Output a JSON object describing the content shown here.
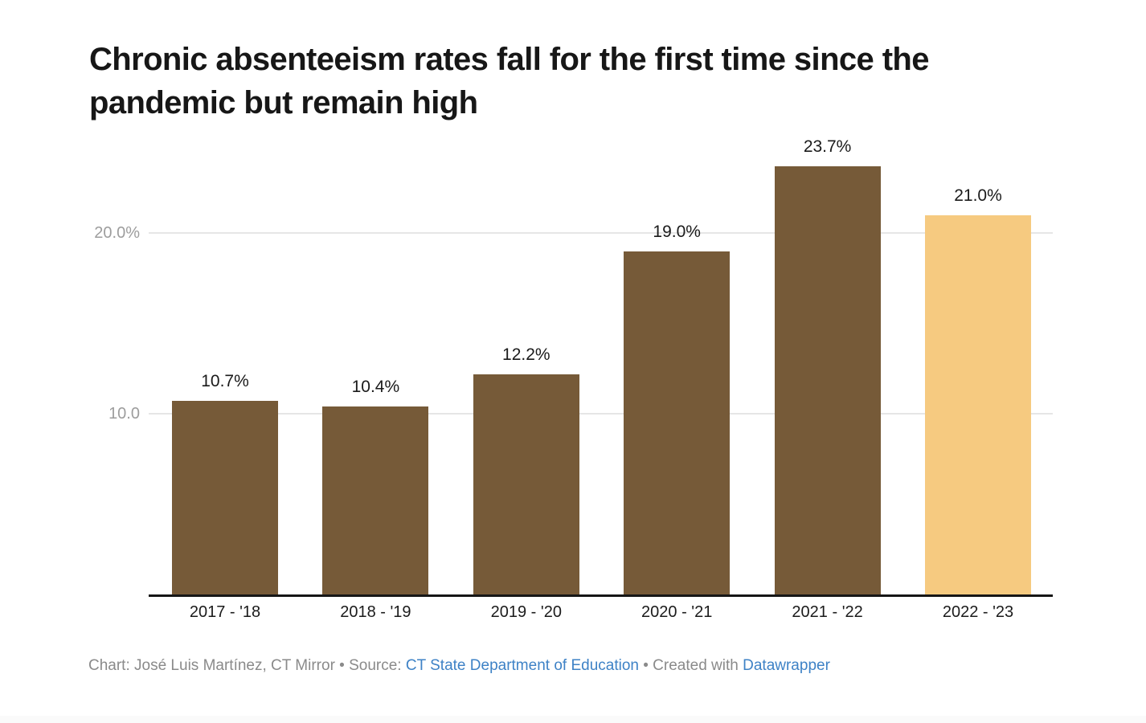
{
  "title": {
    "text": "Chronic absenteeism rates fall for the first time since the pandemic but remain high",
    "lines": [
      "Chronic absenteeism rates fall for the first time since the",
      "pandemic but remain high"
    ]
  },
  "chart_data": {
    "type": "bar",
    "title": "Chronic absenteeism rates fall for the first time since the pandemic but remain high",
    "categories": [
      "2017 - '18",
      "2018 - '19",
      "2019 - '20",
      "2020 - '21",
      "2021 - '22",
      "2022 - '23"
    ],
    "values": [
      10.7,
      10.4,
      12.2,
      19.0,
      23.7,
      21.0
    ],
    "value_labels": [
      "10.7%",
      "10.4%",
      "12.2%",
      "19.0%",
      "23.7%",
      "21.0%"
    ],
    "bar_colors": [
      "#765A38",
      "#765A38",
      "#765A38",
      "#765A38",
      "#765A38",
      "#F6CA80"
    ],
    "xlabel": "",
    "ylabel": "",
    "ylim": [
      0,
      25.8
    ],
    "yticks": [
      {
        "value": 10,
        "label": "10.0"
      },
      {
        "value": 20,
        "label": "20.0%"
      }
    ],
    "grid": true,
    "legend": false
  },
  "colors": {
    "bar_default": "#765A38",
    "bar_highlight": "#F6CA80",
    "gridline": "#e6e6e6",
    "baseline": "#161616",
    "axis_label": "#9d9d9d",
    "footer_text": "#8a8a8a",
    "footer_link": "#3e82c6"
  },
  "footer": {
    "prefix": "Chart: José Luis Martínez, CT Mirror • Source: ",
    "source_link": "CT State Department of Education",
    "middle": " • Created with ",
    "credit_link": "Datawrapper"
  }
}
